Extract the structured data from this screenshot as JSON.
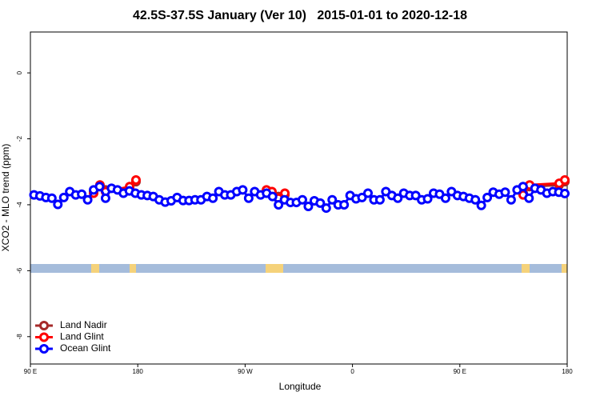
{
  "chart_data": {
    "type": "line",
    "title": "42.5S-37.5S January (Ver 10)   2015-01-01 to 2020-12-18",
    "x_label": "Longitude",
    "y_label": "XCO2 - MLO trend (ppm)",
    "xlim": [
      90,
      540
    ],
    "ylim": [
      -8.83,
      1.24
    ],
    "xticks": [
      {
        "value": 90,
        "label": "90 E"
      },
      {
        "value": 180,
        "label": "180"
      },
      {
        "value": 270,
        "label": "90 W"
      },
      {
        "value": 360,
        "label": "0"
      },
      {
        "value": 450,
        "label": "90 E"
      },
      {
        "value": 540,
        "label": "180"
      }
    ],
    "yticks": [
      0,
      -2,
      -4,
      -6,
      -8
    ],
    "legend_position": "bottomleft",
    "series": [
      {
        "name": "Land Nadir",
        "color": "#a52a2a",
        "x": [
          143,
          148.3,
          153,
          173.2,
          178.5,
          null,
          287.9,
          292.5,
          297.9,
          303.3,
          null,
          503.1,
          508.5,
          533.3,
          538
        ],
        "values": [
          -3.6,
          -3.45,
          -3.55,
          -3.5,
          -3.3,
          null,
          -3.6,
          -3.65,
          -3.75,
          -3.7,
          null,
          -3.65,
          -3.45,
          -3.4,
          -3.3
        ]
      },
      {
        "name": "Land Glint",
        "color": "#ff0000",
        "x": [
          143,
          148.3,
          153,
          173.2,
          178.5,
          null,
          287.9,
          292.5,
          297.9,
          303.3,
          null,
          503.1,
          508.5,
          533.3,
          538
        ],
        "values": [
          -3.65,
          -3.4,
          -3.6,
          -3.45,
          -3.25,
          null,
          -3.55,
          -3.6,
          -3.8,
          -3.65,
          null,
          -3.7,
          -3.4,
          -3.35,
          -3.25
        ]
      },
      {
        "name": "Ocean Glint",
        "color": "#0000ff",
        "x": [
          93,
          98,
          103,
          108,
          113,
          118,
          123,
          128,
          133,
          138,
          143,
          148,
          153,
          158,
          163,
          168,
          173,
          178,
          183,
          188,
          193,
          198,
          203,
          208,
          213,
          218,
          223,
          228,
          233,
          238,
          243,
          248,
          253,
          258,
          263,
          268,
          273,
          278,
          283,
          288,
          293,
          298,
          303,
          308,
          313,
          318,
          323,
          328,
          333,
          338,
          343,
          348,
          353,
          358,
          363,
          368,
          373,
          378,
          383,
          388,
          393,
          398,
          403,
          408,
          413,
          418,
          423,
          428,
          433,
          438,
          443,
          448,
          453,
          458,
          463,
          468,
          473,
          478,
          483,
          488,
          493,
          498,
          503,
          508,
          513,
          518,
          523,
          528,
          533,
          538
        ],
        "values": [
          -3.7,
          -3.73,
          -3.78,
          -3.8,
          -3.99,
          -3.78,
          -3.6,
          -3.7,
          -3.68,
          -3.85,
          -3.55,
          -3.45,
          -3.8,
          -3.5,
          -3.55,
          -3.65,
          -3.58,
          -3.65,
          -3.7,
          -3.72,
          -3.75,
          -3.85,
          -3.92,
          -3.88,
          -3.78,
          -3.87,
          -3.87,
          -3.85,
          -3.85,
          -3.75,
          -3.8,
          -3.6,
          -3.7,
          -3.7,
          -3.6,
          -3.55,
          -3.8,
          -3.6,
          -3.7,
          -3.65,
          -3.75,
          -4.0,
          -3.85,
          -3.93,
          -3.93,
          -3.85,
          -4.05,
          -3.88,
          -3.95,
          -4.1,
          -3.85,
          -4.0,
          -4.0,
          -3.72,
          -3.82,
          -3.78,
          -3.65,
          -3.85,
          -3.85,
          -3.6,
          -3.72,
          -3.8,
          -3.65,
          -3.72,
          -3.72,
          -3.85,
          -3.82,
          -3.65,
          -3.68,
          -3.8,
          -3.6,
          -3.72,
          -3.75,
          -3.8,
          -3.85,
          -4.02,
          -3.78,
          -3.62,
          -3.68,
          -3.62,
          -3.85,
          -3.55,
          -3.45,
          -3.8,
          -3.5,
          -3.55,
          -3.65,
          -3.6,
          -3.62,
          -3.66
        ]
      }
    ]
  }
}
